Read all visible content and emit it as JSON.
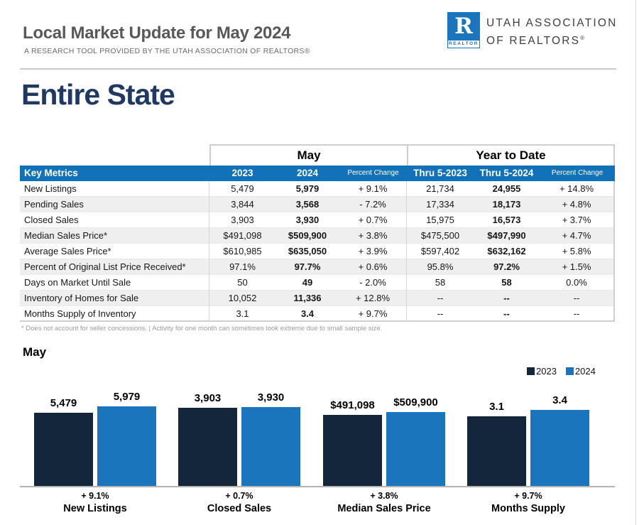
{
  "header": {
    "title": "Local Market Update for May 2024",
    "subtitle": "A RESEARCH TOOL PROVIDED BY THE UTAH ASSOCIATION OF REALTORS®",
    "logo": {
      "badge_letter": "R",
      "badge_text": "REALTOR",
      "org_line1": "UTAH ASSOCIATION",
      "org_line2": "OF REALTORS",
      "registered_mark": "®"
    }
  },
  "region_title": "Entire State",
  "table": {
    "group_headers": {
      "may": "May",
      "ytd": "Year to Date"
    },
    "columns": [
      "Key Metrics",
      "2023",
      "2024",
      "Percent Change",
      "Thru 5-2023",
      "Thru 5-2024",
      "Percent Change"
    ],
    "rows": [
      {
        "metric": "New Listings",
        "may_2023": "5,479",
        "may_2024": "5,979",
        "may_pct": "+ 9.1%",
        "ytd_2023": "21,734",
        "ytd_2024": "24,955",
        "ytd_pct": "+ 14.8%"
      },
      {
        "metric": "Pending Sales",
        "may_2023": "3,844",
        "may_2024": "3,568",
        "may_pct": "- 7.2%",
        "ytd_2023": "17,334",
        "ytd_2024": "18,173",
        "ytd_pct": "+ 4.8%"
      },
      {
        "metric": "Closed Sales",
        "may_2023": "3,903",
        "may_2024": "3,930",
        "may_pct": "+ 0.7%",
        "ytd_2023": "15,975",
        "ytd_2024": "16,573",
        "ytd_pct": "+ 3.7%"
      },
      {
        "metric": "Median Sales Price*",
        "may_2023": "$491,098",
        "may_2024": "$509,900",
        "may_pct": "+ 3.8%",
        "ytd_2023": "$475,500",
        "ytd_2024": "$497,990",
        "ytd_pct": "+ 4.7%"
      },
      {
        "metric": "Average Sales Price*",
        "may_2023": "$610,985",
        "may_2024": "$635,050",
        "may_pct": "+ 3.9%",
        "ytd_2023": "$597,402",
        "ytd_2024": "$632,162",
        "ytd_pct": "+ 5.8%"
      },
      {
        "metric": "Percent of Original List Price Received*",
        "may_2023": "97.1%",
        "may_2024": "97.7%",
        "may_pct": "+ 0.6%",
        "ytd_2023": "95.8%",
        "ytd_2024": "97.2%",
        "ytd_pct": "+ 1.5%"
      },
      {
        "metric": "Days on Market Until Sale",
        "may_2023": "50",
        "may_2024": "49",
        "may_pct": "- 2.0%",
        "ytd_2023": "58",
        "ytd_2024": "58",
        "ytd_pct": "0.0%"
      },
      {
        "metric": "Inventory of Homes for Sale",
        "may_2023": "10,052",
        "may_2024": "11,336",
        "may_pct": "+ 12.8%",
        "ytd_2023": "--",
        "ytd_2024": "--",
        "ytd_pct": "--"
      },
      {
        "metric": "Months Supply of Inventory",
        "may_2023": "3.1",
        "may_2024": "3.4",
        "may_pct": "+ 9.7%",
        "ytd_2023": "--",
        "ytd_2024": "--",
        "ytd_pct": "--"
      }
    ],
    "footnote": "* Does not account for seller concessions. | Activity for one month can sometimes look extreme due to small sample size."
  },
  "chart_data": {
    "type": "bar",
    "title": "May",
    "categories": [
      "New Listings",
      "Closed Sales",
      "Median Sales Price",
      "Months Supply"
    ],
    "series": [
      {
        "name": "2023",
        "values": [
          5479,
          3903,
          491098,
          3.1
        ],
        "labels": [
          "5,479",
          "3,903",
          "$491,098",
          "3.1"
        ],
        "color": "#13263c"
      },
      {
        "name": "2024",
        "values": [
          5979,
          3930,
          509900,
          3.4
        ],
        "labels": [
          "5,979",
          "3,930",
          "$509,900",
          "3.4"
        ],
        "color": "#1b75bc"
      }
    ],
    "pct_change": [
      "+ 9.1%",
      "+ 0.7%",
      "+ 3.8%",
      "+ 9.7%"
    ],
    "legend_position": "top-right",
    "grid": false,
    "normalization": "each category pair scaled independently, larger bar near full height"
  },
  "colors": {
    "table_header_blue": "#1272b9",
    "chart_navy": "#13263c",
    "chart_blue": "#1b75bc",
    "heading_navy": "#1f3864",
    "title_gray": "#57585a",
    "row_alt_gray": "#efefef"
  }
}
